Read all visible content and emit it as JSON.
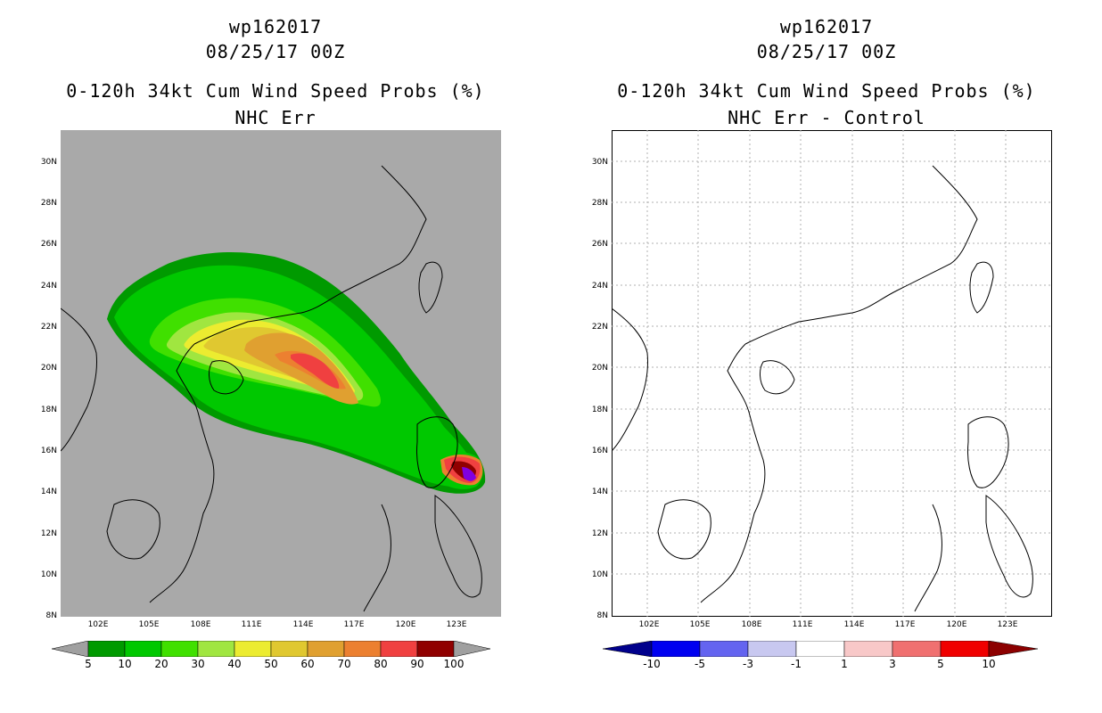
{
  "left": {
    "title1": "wp162017",
    "title2": "08/25/17 00Z",
    "title3": "0-120h 34kt Cum Wind Speed Probs (%)",
    "title4": "NHC Err",
    "lat_labels": [
      "30N",
      "28N",
      "26N",
      "24N",
      "22N",
      "20N",
      "18N",
      "16N",
      "14N",
      "12N",
      "10N",
      "8N"
    ],
    "lon_labels": [
      "102E",
      "105E",
      "108E",
      "111E",
      "114E",
      "117E",
      "120E",
      "123E"
    ],
    "colorbar_labels": [
      "5",
      "10",
      "20",
      "30",
      "40",
      "50",
      "60",
      "70",
      "80",
      "90",
      "100"
    ],
    "colorbar_colors": [
      "#009a00",
      "#00c800",
      "#40e000",
      "#a0e640",
      "#ecec30",
      "#e0c830",
      "#e0a030",
      "#ec8030",
      "#f04040",
      "#900000",
      "#8000e0",
      "#a0a0a0"
    ]
  },
  "right": {
    "title1": "wp162017",
    "title2": "08/25/17 00Z",
    "title3": "0-120h 34kt Cum Wind Speed Probs (%)",
    "title4": "NHC Err - Control",
    "lat_labels": [
      "30N",
      "28N",
      "26N",
      "24N",
      "22N",
      "20N",
      "18N",
      "16N",
      "14N",
      "12N",
      "10N",
      "8N"
    ],
    "lon_labels": [
      "102E",
      "105E",
      "108E",
      "111E",
      "114E",
      "117E",
      "120E",
      "123E"
    ],
    "colorbar_labels": [
      "-10",
      "-5",
      "-3",
      "-1",
      "1",
      "3",
      "5",
      "10"
    ],
    "colorbar_colors": [
      "#00008c",
      "#0000f0",
      "#6464f0",
      "#c8c8f0",
      "#ffffff",
      "#f8c8c8",
      "#f07070",
      "#f00000",
      "#8c0000"
    ]
  }
}
